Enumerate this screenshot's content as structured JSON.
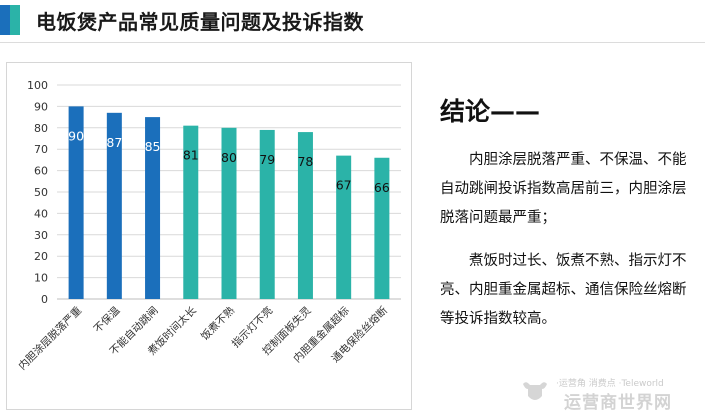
{
  "header": {
    "title": "电饭煲产品常见质量问题及投诉指数",
    "accent_colors": [
      "#1b6fbb",
      "#2bb3a8"
    ]
  },
  "chart_data": {
    "type": "bar",
    "title": "",
    "xlabel": "",
    "ylabel": "",
    "ylim": [
      0,
      100
    ],
    "yticks": [
      0,
      10,
      20,
      30,
      40,
      50,
      60,
      70,
      80,
      90,
      100
    ],
    "grid": true,
    "legend": "none",
    "categories": [
      "内胆涂层脱落严重",
      "不保温",
      "不能自动跳闸",
      "煮饭时间太长",
      "饭煮不熟",
      "指示灯不亮",
      "控制面板失灵",
      "内胆重金属超标",
      "通电保险丝熔断"
    ],
    "values": [
      90,
      87,
      85,
      81,
      80,
      79,
      78,
      67,
      66
    ],
    "bar_colors": [
      "#1b6fbb",
      "#1b6fbb",
      "#1b6fbb",
      "#2bb3a8",
      "#2bb3a8",
      "#2bb3a8",
      "#2bb3a8",
      "#2bb3a8",
      "#2bb3a8"
    ],
    "label_colors": [
      "#ffffff",
      "#ffffff",
      "#ffffff",
      "#111111",
      "#111111",
      "#111111",
      "#111111",
      "#111111",
      "#111111"
    ]
  },
  "conclusion": {
    "heading": "结论——",
    "paragraphs": [
      "内胆涂层脱落严重、不保温、不能自动跳闸投诉指数高居前三，内胆涂层脱落问题最严重；",
      "煮饭时过长、饭煮不熟、指示灯不亮、内胆重金属超标、通信保险丝熔断等投诉指数较高。"
    ]
  },
  "watermark": {
    "top_text": "·运营角 消费点 ·Teleworld",
    "main_text": "运营商世界网",
    "icon": "bull-logo-icon"
  }
}
